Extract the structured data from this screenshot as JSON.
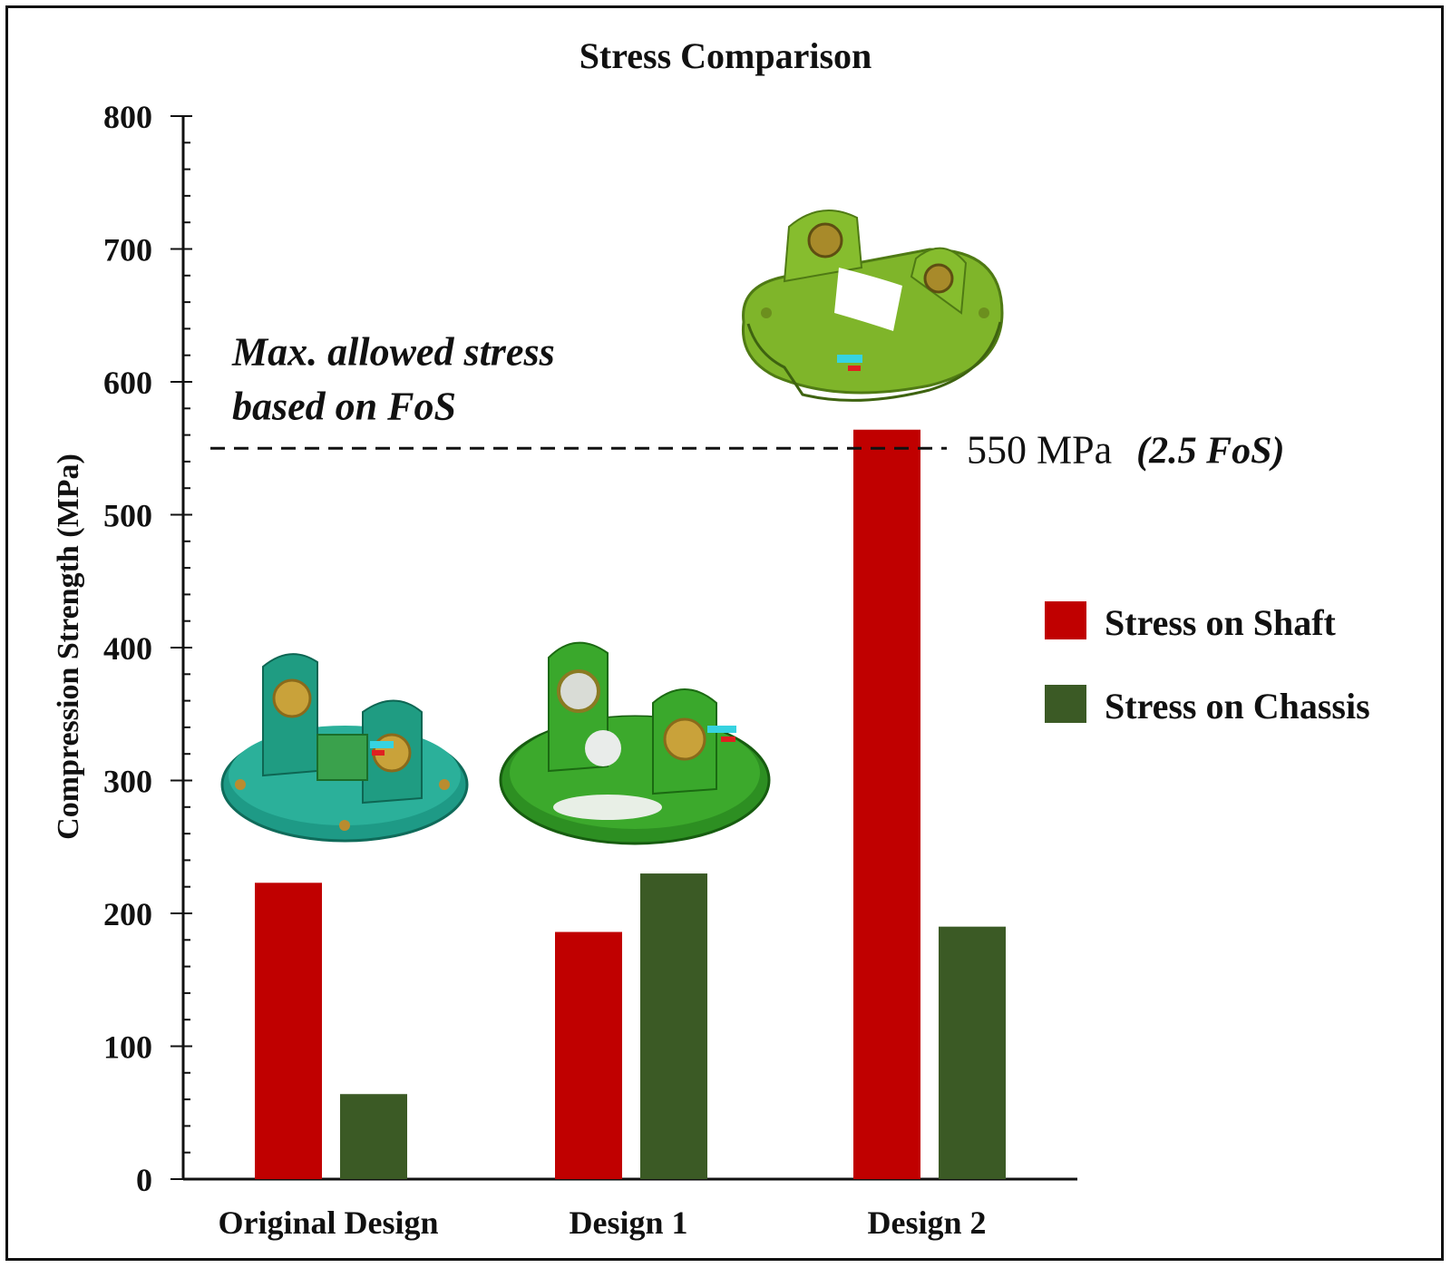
{
  "chart_data": {
    "type": "bar",
    "title": "Stress Comparison",
    "xlabel": "",
    "ylabel": "Compression Strength (MPa)",
    "ylim": [
      0,
      800
    ],
    "yticks": [
      0,
      100,
      200,
      300,
      400,
      500,
      600,
      700,
      800
    ],
    "y_tick_labels": [
      "0",
      "100",
      "200",
      "300",
      "400",
      "500",
      "600",
      "700",
      "800"
    ],
    "categories": [
      "Original Design",
      "Design 1",
      "Design 2"
    ],
    "series": [
      {
        "name": "Stress on Shaft",
        "color": "#c00000",
        "values": [
          223,
          186,
          564
        ]
      },
      {
        "name": "Stress on Chassis",
        "color": "#3b5a25",
        "values": [
          64,
          230,
          190
        ]
      }
    ],
    "threshold": {
      "value": 550,
      "label": "550 MPa",
      "label_suffix": "(2.5 FoS)",
      "annotation_lines": [
        "Max. allowed stress",
        "based on FoS"
      ]
    },
    "legend_position": "right",
    "grid": false,
    "illustrations": [
      "original-design-fea-model",
      "design-1-fea-model",
      "design-2-fea-model"
    ]
  }
}
